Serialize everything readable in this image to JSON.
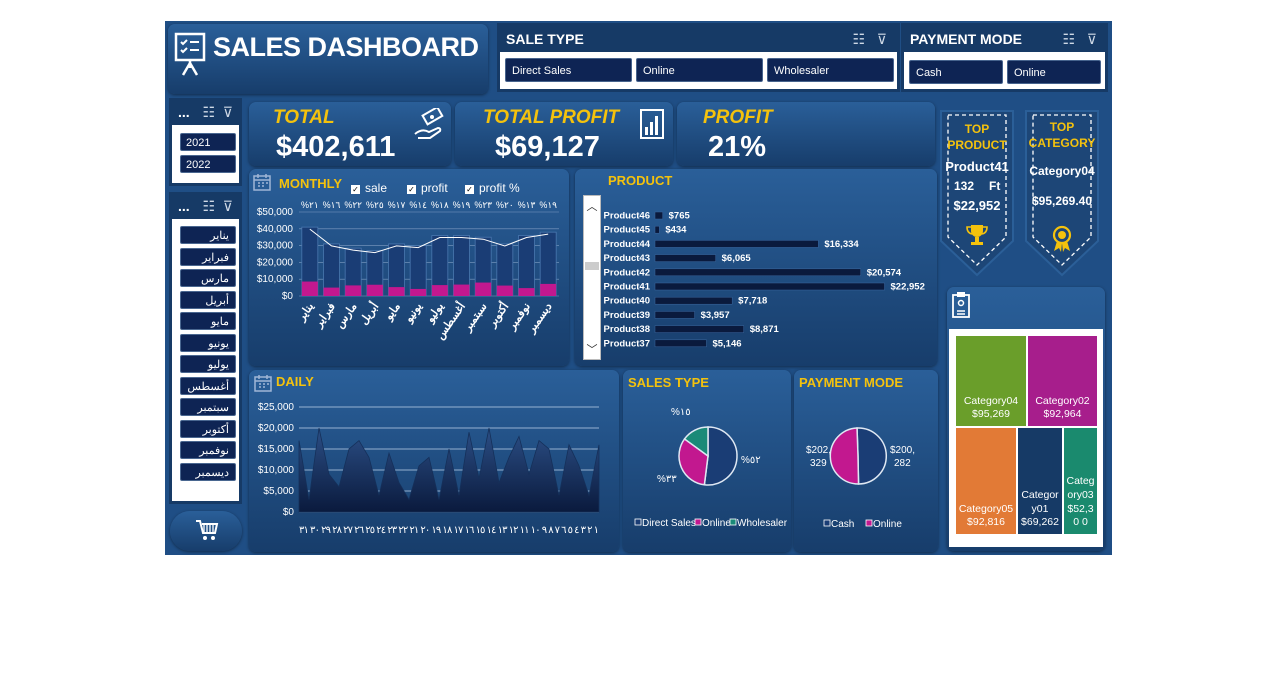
{
  "header": {
    "title": "SALES DASHBOARD"
  },
  "sale_type_slicer": {
    "title": "SALE TYPE",
    "options": [
      "Direct Sales",
      "Online",
      "Wholesaler"
    ]
  },
  "payment_slicer": {
    "title": "PAYMENT MODE",
    "options": [
      "Cash",
      "Online"
    ]
  },
  "year_slicer": {
    "title": "...",
    "options": [
      "2021",
      "2022"
    ]
  },
  "month_slicer": {
    "title": "...",
    "options": [
      "يناير",
      "فبراير",
      "مارس",
      "أبريل",
      "مايو",
      "يونيو",
      "يوليو",
      "أغسطس",
      "سبتمبر",
      "أكتوبر",
      "نوفمبر",
      "ديسمبر"
    ]
  },
  "kpis": {
    "total_label": "TOTAL",
    "total_value": "$402,611",
    "profit_label": "TOTAL PROFIT",
    "profit_value": "$69,127",
    "margin_label": "PROFIT",
    "margin_value": "21%"
  },
  "monthly": {
    "title": "MONTHLY",
    "legend": [
      "sale",
      "profit",
      "profit %"
    ],
    "y_ticks": [
      "$50,000",
      "$40,000",
      "$30,000",
      "$20,000",
      "$10,000",
      "$0"
    ],
    "pct_labels": [
      "%٢١",
      "%١٦",
      "%٢٢",
      "%٢٥",
      "%١٧",
      "%١٤",
      "%١٨",
      "%١٩",
      "%٢٣",
      "%٢٠",
      "%١٣",
      "%١٩"
    ],
    "months": [
      "يناير",
      "فبراير",
      "مارس",
      "أبريل",
      "مايو",
      "يونيو",
      "يوليو",
      "أغسطس",
      "سبتمبر",
      "أكتوبر",
      "نوفمبر",
      "ديسمبر"
    ],
    "colors": {
      "sale": "#1a3d75",
      "profit": "#c2188f",
      "line": "#ffffff"
    }
  },
  "product": {
    "title": "PRODUCT",
    "items": [
      "Product46",
      "Product45",
      "Product44",
      "Product43",
      "Product42",
      "Product41",
      "Product40",
      "Product39",
      "Product38",
      "Product37"
    ],
    "labels": [
      "$765",
      "$434",
      "$16,334",
      "$6,065",
      "$20,574",
      "$22,952",
      "$7,718",
      "$3,957",
      "$8,871",
      "$5,146"
    ]
  },
  "top_product": {
    "title": [
      "TOP",
      "PRODUCT"
    ],
    "name": "Product41",
    "qty": "132",
    "unit": "Ft",
    "value": "$22,952"
  },
  "top_category": {
    "title": [
      "TOP",
      "CATEGORY"
    ],
    "name": "Category04",
    "value": "$95,269.40"
  },
  "daily": {
    "title": "DAILY",
    "y_ticks": [
      "$25,000",
      "$20,000",
      "$15,000",
      "$10,000",
      "$5,000",
      "$0"
    ],
    "x_labels": "١ ٢ ٣ ٤ ٥ ٦ ٧ ٨ ٩ ١٠ ١١ ١٢ ١٣ ١٤ ١٥ ١٦ ١٧ ١٨ ١٩ ٢٠ ٢١ ٢٢ ٢٣ ٢٤ ٢٥ ٢٦ ٢٧ ٢٨ ٢٩ ٣٠ ٣١"
  },
  "sales_type_pie": {
    "title": "SALES TYPE",
    "labels": [
      "%١٥",
      "%٣٣",
      "%٥٢"
    ],
    "legend": [
      "Direct Sales",
      "Online",
      "Wholesaler"
    ],
    "colors": [
      "#1a3d75",
      "#c2188f",
      "#1a8a78"
    ]
  },
  "payment_pie": {
    "title": "PAYMENT MODE",
    "labels": [
      "$202,329",
      "$200,282"
    ],
    "legend": [
      "Cash",
      "Online"
    ],
    "colors": [
      "#1a3d75",
      "#c2188f"
    ]
  },
  "treemap": {
    "cells": [
      {
        "name": "Category04",
        "value": "$95,269",
        "color": "#6a9e2a"
      },
      {
        "name": "Category02",
        "value": "$92,964",
        "color": "#a71e8c"
      },
      {
        "name": "Category05",
        "value": "$92,816",
        "color": "#e27a36"
      },
      {
        "name": "Categor y01",
        "value": "$69,262",
        "color": "#163a66"
      },
      {
        "name": "Categ ory03",
        "value": "$52,30 0",
        "color": "#1a8a6e"
      }
    ]
  },
  "chart_data": [
    {
      "type": "bar",
      "title": "MONTHLY",
      "categories": [
        "يناير",
        "فبراير",
        "مارس",
        "أبريل",
        "مايو",
        "يونيو",
        "يوليو",
        "أغسطس",
        "سبتمبر",
        "أكتوبر",
        "نوفمبر",
        "ديسمبر"
      ],
      "series": [
        {
          "name": "sale",
          "values": [
            41000,
            31000,
            28500,
            27000,
            31000,
            30000,
            36000,
            36000,
            35000,
            31000,
            36000,
            38000
          ]
        },
        {
          "name": "profit",
          "values": [
            8600,
            5000,
            6300,
            6700,
            5300,
            4200,
            6500,
            6800,
            8000,
            6200,
            4700,
            7200
          ]
        },
        {
          "name": "profit %",
          "values": [
            21,
            16,
            22,
            25,
            17,
            14,
            18,
            19,
            23,
            20,
            13,
            19
          ]
        }
      ],
      "ylim": [
        0,
        50000
      ]
    },
    {
      "type": "bar",
      "title": "PRODUCT",
      "categories": [
        "Product46",
        "Product45",
        "Product44",
        "Product43",
        "Product42",
        "Product41",
        "Product40",
        "Product39",
        "Product38",
        "Product37"
      ],
      "values": [
        765,
        434,
        16334,
        6065,
        20574,
        22952,
        7718,
        3957,
        8871,
        5146
      ]
    },
    {
      "type": "area",
      "title": "DAILY",
      "x": [
        1,
        2,
        3,
        4,
        5,
        6,
        7,
        8,
        9,
        10,
        11,
        12,
        13,
        14,
        15,
        16,
        17,
        18,
        19,
        20,
        21,
        22,
        23,
        24,
        25,
        26,
        27,
        28,
        29,
        30,
        31
      ],
      "values": [
        17000,
        3000,
        20000,
        9000,
        6000,
        15000,
        17000,
        13000,
        4000,
        14000,
        7000,
        3000,
        11000,
        13000,
        3000,
        15000,
        4000,
        19000,
        8000,
        20000,
        7000,
        13000,
        18000,
        9000,
        17000,
        15000,
        4000,
        16000,
        11000,
        4000,
        16000
      ],
      "ylim": [
        0,
        25000
      ]
    },
    {
      "type": "pie",
      "title": "SALES TYPE",
      "categories": [
        "Direct Sales",
        "Online",
        "Wholesaler"
      ],
      "values": [
        52,
        33,
        15
      ]
    },
    {
      "type": "pie",
      "title": "PAYMENT MODE",
      "categories": [
        "Cash",
        "Online"
      ],
      "values": [
        202329,
        200282
      ]
    }
  ]
}
